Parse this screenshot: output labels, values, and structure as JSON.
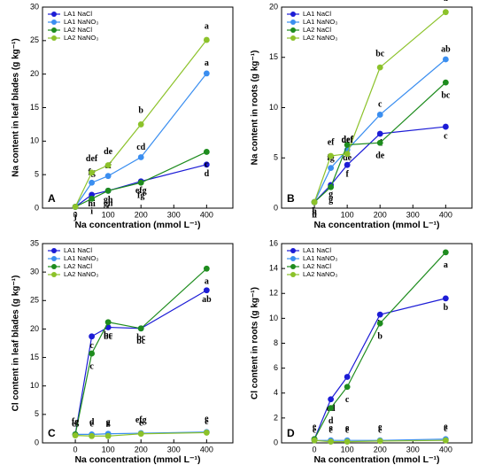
{
  "chart_data": [
    {
      "type": "line",
      "panel_label": "A",
      "ylabel": "Na content in leaf blades (g kg⁻¹)",
      "xlabel": "Na concentration (mmol L⁻¹)",
      "x": [
        0,
        50,
        100,
        200,
        400
      ],
      "xlim": [
        -100,
        480
      ],
      "xticks": [
        0,
        100,
        200,
        300,
        400
      ],
      "ylim": [
        0,
        30
      ],
      "yticks": [
        0,
        5,
        10,
        15,
        20,
        25,
        30
      ],
      "series": [
        {
          "name": "LA1 NaCl",
          "color": "#1c1cd6",
          "values": [
            0.2,
            2.0,
            2.6,
            4.0,
            6.5
          ],
          "letters": [
            "j",
            "hi",
            "gh",
            "efg",
            "d"
          ]
        },
        {
          "name": "LA1 NaNO₃",
          "color": "#3a8ef0",
          "values": [
            0.2,
            3.8,
            4.8,
            7.6,
            20.1
          ],
          "letters": [
            null,
            "fg",
            "ef",
            "cd",
            "a"
          ]
        },
        {
          "name": "LA2 NaCl",
          "color": "#1e8c1e",
          "values": [
            0.2,
            1.4,
            2.6,
            3.8,
            8.4
          ],
          "letters": [
            null,
            "i",
            "gh",
            "fg",
            "c"
          ]
        },
        {
          "name": "LA2 NaNO₃",
          "color": "#8cc22a",
          "values": [
            0.2,
            5.3,
            6.4,
            12.5,
            25.1
          ],
          "letters": [
            null,
            "def",
            "de",
            "b",
            "a"
          ]
        }
      ]
    },
    {
      "type": "line",
      "panel_label": "B",
      "ylabel": "Na content in roots (g kg⁻¹)",
      "xlabel": "Na concentration (mmol L⁻¹)",
      "x": [
        0,
        50,
        100,
        200,
        400
      ],
      "xlim": [
        -100,
        480
      ],
      "xticks": [
        0,
        100,
        200,
        300,
        400
      ],
      "ylim": [
        0,
        20
      ],
      "yticks": [
        0,
        5,
        10,
        15,
        20
      ],
      "series": [
        {
          "name": "LA1 NaCl",
          "color": "#1c1cd6",
          "values": [
            0.6,
            2.3,
            4.3,
            7.4,
            8.1
          ],
          "letters": [
            "h",
            "g",
            "f",
            "d",
            "c"
          ]
        },
        {
          "name": "LA1 NaNO₃",
          "color": "#3a8ef0",
          "values": [
            0.6,
            4.0,
            5.8,
            9.3,
            14.8
          ],
          "letters": [
            null,
            "fg",
            "def",
            "c",
            "ab"
          ]
        },
        {
          "name": "LA2 NaCl",
          "color": "#1e8c1e",
          "values": [
            0.6,
            2.1,
            6.3,
            6.5,
            12.5
          ],
          "letters": [
            "h",
            "g",
            "de",
            "de",
            "bc"
          ]
        },
        {
          "name": "LA2 NaNO₃",
          "color": "#8cc22a",
          "values": [
            0.6,
            5.2,
            5.4,
            14.0,
            19.5
          ],
          "letters": [
            null,
            "ef",
            "def",
            "bc",
            "a"
          ]
        }
      ]
    },
    {
      "type": "line",
      "panel_label": "C",
      "ylabel": "Cl content in leaf blades (g kg⁻¹)",
      "xlabel": "Na concentration (mmol L⁻¹)",
      "x": [
        0,
        50,
        100,
        200,
        400
      ],
      "xlim": [
        -100,
        480
      ],
      "xticks": [
        0,
        100,
        200,
        300,
        400
      ],
      "ylim": [
        0,
        35
      ],
      "yticks": [
        0,
        5,
        10,
        15,
        20,
        25,
        30,
        35
      ],
      "series": [
        {
          "name": "LA1 NaCl",
          "color": "#1c1cd6",
          "values": [
            1.5,
            18.7,
            20.3,
            20.1,
            26.8
          ],
          "letters": [
            null,
            "c",
            "bc",
            "bc",
            "ab"
          ]
        },
        {
          "name": "LA1 NaNO₃",
          "color": "#3a8ef0",
          "values": [
            1.5,
            1.5,
            1.6,
            1.7,
            1.9
          ],
          "letters": [
            "ef",
            "e",
            "e",
            "e",
            "e"
          ]
        },
        {
          "name": "LA2 NaCl",
          "color": "#1e8c1e",
          "values": [
            1.5,
            15.7,
            21.2,
            20.1,
            30.6
          ],
          "letters": [
            null,
            "c",
            "bc",
            "bc",
            "a"
          ]
        },
        {
          "name": "LA2 NaNO₃",
          "color": "#8cc22a",
          "values": [
            1.3,
            1.2,
            1.2,
            1.6,
            1.8
          ],
          "letters": [
            "fg",
            "d",
            "g",
            "efg",
            "e"
          ]
        }
      ]
    },
    {
      "type": "line",
      "panel_label": "D",
      "ylabel": "Cl content in roots (g kg⁻¹)",
      "xlabel": "Na concentration (mmol L⁻¹)",
      "x": [
        0,
        50,
        100,
        200,
        400
      ],
      "xlim": [
        -100,
        480
      ],
      "xticks": [
        0,
        100,
        200,
        300,
        400
      ],
      "ylim": [
        0,
        16
      ],
      "yticks": [
        0,
        2,
        4,
        6,
        8,
        10,
        12,
        14,
        16
      ],
      "series": [
        {
          "name": "LA1 NaCl",
          "color": "#1c1cd6",
          "values": [
            0.3,
            3.5,
            5.3,
            10.3,
            11.6
          ],
          "letters": [
            null,
            "cd",
            "c",
            "b",
            "b"
          ]
        },
        {
          "name": "LA1 NaNO₃",
          "color": "#3a8ef0",
          "values": [
            0.2,
            0.2,
            0.2,
            0.2,
            0.3
          ],
          "letters": [
            "e",
            "e",
            "e",
            "e",
            "e"
          ]
        },
        {
          "name": "LA2 NaCl",
          "color": "#1e8c1e",
          "values": [
            0.3,
            2.8,
            4.5,
            9.6,
            15.3
          ],
          "letters": [
            null,
            "d",
            "c",
            "b",
            "a"
          ]
        },
        {
          "name": "LA2 NaNO₃",
          "color": "#8cc22a",
          "values": [
            0.2,
            0.1,
            0.1,
            0.15,
            0.2
          ],
          "letters": [
            "e",
            "e",
            "e",
            "e",
            "e"
          ]
        }
      ]
    }
  ]
}
